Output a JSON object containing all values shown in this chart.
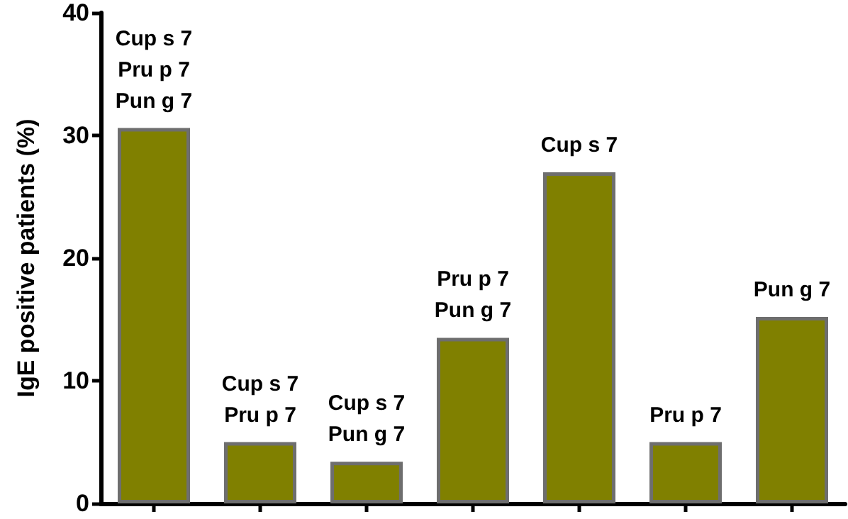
{
  "chart_data": {
    "type": "bar",
    "ylabel": "IgE positive patients (%)",
    "categories": [
      null,
      null,
      null,
      null,
      null,
      null,
      null
    ],
    "values": [
      30.6,
      5.0,
      3.4,
      13.5,
      27.0,
      5.0,
      15.2
    ],
    "value_labels": [
      "Cup s 7\nPru p 7\nPun g 7",
      "Cup s 7\nPru p 7",
      "Cup s 7\nPun g 7",
      "Pru p 7\nPun g 7",
      "Cup s 7",
      "Pru p 7",
      "Pun g 7"
    ],
    "color": "#808000",
    "ylim": [
      0,
      40
    ],
    "yticks": [
      0,
      10,
      20,
      30,
      40
    ]
  }
}
